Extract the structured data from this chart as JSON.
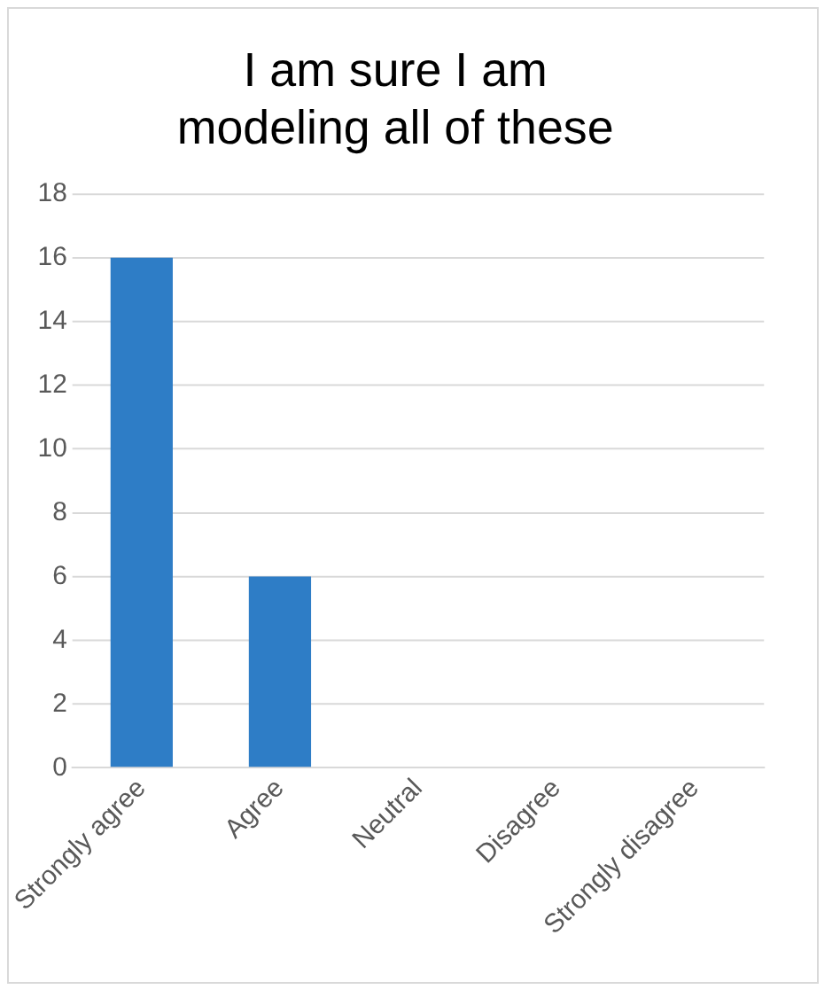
{
  "chart_data": {
    "type": "bar",
    "title": "I am sure I am modeling all of these",
    "categories": [
      "Strongly agree",
      "Agree",
      "Neutral",
      "Disagree",
      "Strongly disagree"
    ],
    "values": [
      16,
      6,
      0,
      0,
      0
    ],
    "color": "#2e7dc6",
    "ylim": [
      0,
      18
    ],
    "yticks": [
      0,
      2,
      4,
      6,
      8,
      10,
      12,
      14,
      16,
      18
    ],
    "grid": "y",
    "legend": false
  }
}
